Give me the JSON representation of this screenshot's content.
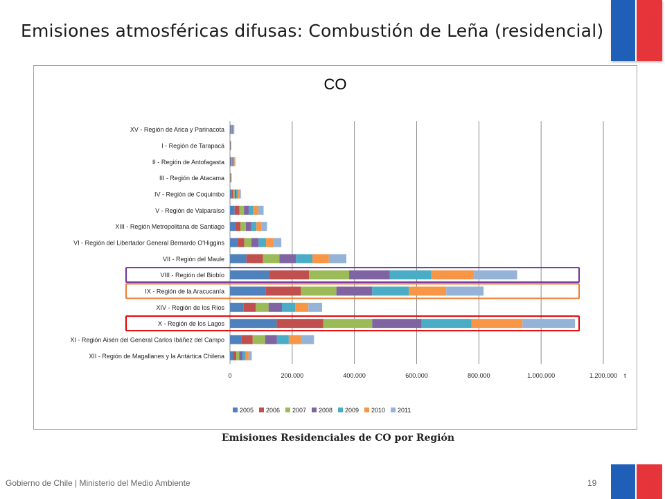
{
  "slide": {
    "title": "Emisiones atmosféricas difusas: Combustión de Leña (residencial)",
    "caption": "Emisiones Residenciales de CO por Región",
    "footer": "Gobierno de Chile | Ministerio del Medio Ambiente",
    "page_number": "19"
  },
  "colors": {
    "flag_blue": "#1f5fb8",
    "flag_red": "#e5343a",
    "highlight_purple": "#7030a0",
    "highlight_orange": "#ed7d31",
    "highlight_red": "#e00000"
  },
  "chart_data": {
    "type": "bar",
    "orientation": "horizontal",
    "stacked": true,
    "title": "CO",
    "xlabel": "t",
    "xlim": [
      0,
      1200000
    ],
    "xticks": [
      "0",
      "200.000",
      "400.000",
      "600.000",
      "800.000",
      "1.000.000",
      "1.200.000"
    ],
    "grid": true,
    "legend_position": "bottom",
    "categories": [
      "XV - Región de Arica y Parinacota",
      "I - Región de Tarapacá",
      "II - Región de Antofagasta",
      "III - Región de Atacama",
      "IV - Región de Coquimbo",
      "V - Región de Valparaíso",
      "XIII - Región Metropolitana de Santiago",
      "VI - Región del Libertador General Bernardo O'Higgins",
      "VII - Región del Maule",
      "VIII - Región del Biobío",
      "IX - Región de la Aracucanía",
      "XIV - Región de los Ríos",
      "X - Región de los Lagos",
      "XI - Región Aisén del General Carlos Ibáñez del Campo",
      "XII - Región de Magallanes y la Antártica Chilena"
    ],
    "highlighted": [
      {
        "category_index": 9,
        "color": "#7030a0"
      },
      {
        "category_index": 10,
        "color": "#ed7d31"
      },
      {
        "category_index": 12,
        "color": "#e00000"
      }
    ],
    "series": [
      {
        "name": "2005",
        "color": "#4f81bd",
        "values": [
          2000,
          500,
          2500,
          700,
          5000,
          15000,
          17000,
          23000,
          53000,
          127000,
          114000,
          44000,
          150000,
          37000,
          10000
        ]
      },
      {
        "name": "2006",
        "color": "#c0504d",
        "values": [
          2000,
          500,
          2500,
          700,
          5000,
          15000,
          17000,
          23000,
          53000,
          127000,
          114000,
          39000,
          150000,
          36000,
          10000
        ]
      },
      {
        "name": "2007",
        "color": "#9bbb59",
        "values": [
          2000,
          500,
          2500,
          700,
          5000,
          15000,
          17000,
          23000,
          53000,
          129000,
          114000,
          41000,
          157000,
          40000,
          10000
        ]
      },
      {
        "name": "2008",
        "color": "#8064a2",
        "values": [
          2000,
          500,
          2500,
          700,
          5000,
          15000,
          17000,
          23000,
          53000,
          131000,
          115000,
          43000,
          159000,
          38000,
          10000
        ]
      },
      {
        "name": "2009",
        "color": "#4bacc6",
        "values": [
          2000,
          500,
          2500,
          700,
          5000,
          15000,
          17000,
          24000,
          53000,
          133000,
          118000,
          43000,
          160000,
          38000,
          10000
        ]
      },
      {
        "name": "2010",
        "color": "#f79646",
        "values": [
          2000,
          500,
          2500,
          700,
          5000,
          16000,
          17000,
          24000,
          53000,
          137000,
          120000,
          42000,
          164000,
          39000,
          10000
        ]
      },
      {
        "name": "2011",
        "color": "#95b3d7",
        "values": [
          2000,
          500,
          2500,
          700,
          5000,
          17000,
          17000,
          25000,
          56000,
          139000,
          120000,
          44000,
          169000,
          42000,
          10000
        ]
      }
    ]
  }
}
